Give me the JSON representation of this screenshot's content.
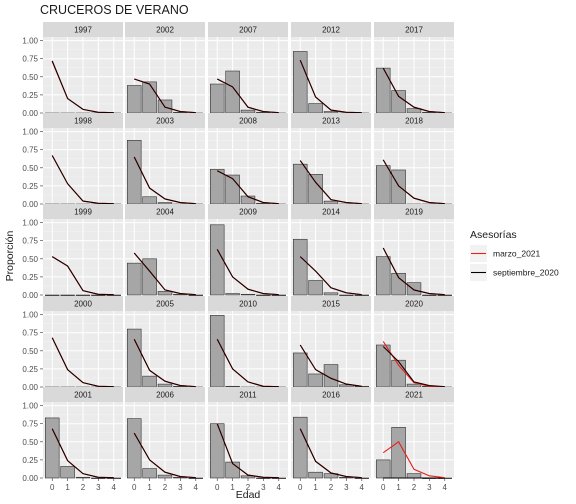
{
  "chart_data": {
    "type": "bar",
    "title": "CRUCEROS DE VERANO",
    "xlabel": "Edad",
    "ylabel": "Proporción",
    "x_ticks": [
      "0",
      "1",
      "2",
      "3",
      "4"
    ],
    "y_ticks": [
      "0.00",
      "0.25",
      "0.50",
      "0.75",
      "1.00"
    ],
    "ylim": [
      0,
      1.05
    ],
    "grid": true,
    "legend": {
      "title": "Asesorías",
      "position": "right",
      "entries": [
        {
          "name": "marzo_2021",
          "color": "#e8201c"
        },
        {
          "name": "septiembre_2020",
          "color": "#000000"
        }
      ]
    },
    "bar_fill": "#a6a6a6",
    "panels": [
      {
        "year": "1997",
        "bars": [
          0,
          0,
          0,
          0,
          0
        ],
        "septiembre_2020": [
          0.72,
          0.2,
          0.05,
          0.01,
          0.005
        ],
        "marzo_2021": [
          0.71,
          0.2,
          0.05,
          0.01,
          0.005
        ]
      },
      {
        "year": "2002",
        "bars": [
          0.38,
          0.43,
          0.18,
          0.01,
          0.0
        ],
        "septiembre_2020": [
          0.47,
          0.4,
          0.08,
          0.02,
          0.005
        ],
        "marzo_2021": [
          0.47,
          0.4,
          0.08,
          0.02,
          0.005
        ]
      },
      {
        "year": "2007",
        "bars": [
          0.4,
          0.58,
          0.04,
          0.01,
          0.0
        ],
        "septiembre_2020": [
          0.47,
          0.36,
          0.08,
          0.02,
          0.005
        ],
        "marzo_2021": [
          0.47,
          0.36,
          0.08,
          0.02,
          0.005
        ]
      },
      {
        "year": "2012",
        "bars": [
          0.85,
          0.13,
          0.02,
          0.0,
          0.0
        ],
        "septiembre_2020": [
          0.73,
          0.22,
          0.04,
          0.01,
          0.005
        ],
        "marzo_2021": [
          0.73,
          0.22,
          0.04,
          0.01,
          0.005
        ]
      },
      {
        "year": "2017",
        "bars": [
          0.62,
          0.31,
          0.06,
          0.01,
          0.0
        ],
        "septiembre_2020": [
          0.62,
          0.23,
          0.08,
          0.02,
          0.005
        ],
        "marzo_2021": [
          0.62,
          0.23,
          0.08,
          0.02,
          0.005
        ]
      },
      {
        "year": "1998",
        "bars": [
          0,
          0,
          0,
          0,
          0
        ],
        "septiembre_2020": [
          0.67,
          0.28,
          0.04,
          0.01,
          0.005
        ],
        "marzo_2021": [
          0.67,
          0.28,
          0.04,
          0.01,
          0.005
        ]
      },
      {
        "year": "2003",
        "bars": [
          0.88,
          0.1,
          0.02,
          0.0,
          0.0
        ],
        "septiembre_2020": [
          0.65,
          0.22,
          0.07,
          0.02,
          0.005
        ],
        "marzo_2021": [
          0.65,
          0.22,
          0.07,
          0.02,
          0.005
        ]
      },
      {
        "year": "2008",
        "bars": [
          0.48,
          0.4,
          0.11,
          0.01,
          0.0
        ],
        "septiembre_2020": [
          0.46,
          0.35,
          0.1,
          0.02,
          0.005
        ],
        "marzo_2021": [
          0.46,
          0.35,
          0.1,
          0.02,
          0.005
        ]
      },
      {
        "year": "2013",
        "bars": [
          0.55,
          0.41,
          0.04,
          0.0,
          0.0
        ],
        "septiembre_2020": [
          0.6,
          0.3,
          0.06,
          0.02,
          0.005
        ],
        "marzo_2021": [
          0.6,
          0.3,
          0.06,
          0.02,
          0.005
        ]
      },
      {
        "year": "2018",
        "bars": [
          0.53,
          0.47,
          0.0,
          0.0,
          0.0
        ],
        "septiembre_2020": [
          0.61,
          0.25,
          0.08,
          0.02,
          0.005
        ],
        "marzo_2021": [
          0.61,
          0.25,
          0.08,
          0.02,
          0.005
        ]
      },
      {
        "year": "1999",
        "bars": [
          0,
          0,
          0,
          0,
          0
        ],
        "septiembre_2020": [
          0.53,
          0.4,
          0.06,
          0.01,
          0.005
        ],
        "marzo_2021": [
          0.53,
          0.4,
          0.06,
          0.01,
          0.005
        ]
      },
      {
        "year": "2004",
        "bars": [
          0.44,
          0.5,
          0.05,
          0.01,
          0.0
        ],
        "septiembre_2020": [
          0.58,
          0.33,
          0.07,
          0.02,
          0.005
        ],
        "marzo_2021": [
          0.58,
          0.33,
          0.07,
          0.02,
          0.005
        ]
      },
      {
        "year": "2009",
        "bars": [
          0.97,
          0.02,
          0.01,
          0.0,
          0.0
        ],
        "septiembre_2020": [
          0.63,
          0.25,
          0.08,
          0.02,
          0.005
        ],
        "marzo_2021": [
          0.63,
          0.25,
          0.08,
          0.02,
          0.005
        ]
      },
      {
        "year": "2014",
        "bars": [
          0.77,
          0.2,
          0.03,
          0.0,
          0.0
        ],
        "septiembre_2020": [
          0.53,
          0.33,
          0.1,
          0.03,
          0.005
        ],
        "marzo_2021": [
          0.53,
          0.33,
          0.1,
          0.03,
          0.005
        ]
      },
      {
        "year": "2019",
        "bars": [
          0.53,
          0.3,
          0.17,
          0.0,
          0.0
        ],
        "septiembre_2020": [
          0.65,
          0.24,
          0.07,
          0.02,
          0.005
        ],
        "marzo_2021": [
          0.65,
          0.24,
          0.07,
          0.02,
          0.005
        ]
      },
      {
        "year": "2000",
        "bars": [
          0,
          0,
          0,
          0,
          0
        ],
        "septiembre_2020": [
          0.68,
          0.24,
          0.06,
          0.01,
          0.005
        ],
        "marzo_2021": [
          0.68,
          0.24,
          0.06,
          0.01,
          0.005
        ]
      },
      {
        "year": "2005",
        "bars": [
          0.8,
          0.15,
          0.04,
          0.01,
          0.0
        ],
        "septiembre_2020": [
          0.66,
          0.23,
          0.08,
          0.02,
          0.005
        ],
        "marzo_2021": [
          0.66,
          0.23,
          0.08,
          0.02,
          0.005
        ]
      },
      {
        "year": "2010",
        "bars": [
          0.99,
          0.01,
          0.0,
          0.0,
          0.0
        ],
        "septiembre_2020": [
          0.66,
          0.25,
          0.07,
          0.01,
          0.005
        ],
        "marzo_2021": [
          0.66,
          0.25,
          0.07,
          0.01,
          0.005
        ]
      },
      {
        "year": "2015",
        "bars": [
          0.47,
          0.18,
          0.31,
          0.03,
          0.01
        ],
        "septiembre_2020": [
          0.58,
          0.24,
          0.12,
          0.04,
          0.01
        ],
        "marzo_2021": [
          0.58,
          0.24,
          0.12,
          0.04,
          0.01
        ]
      },
      {
        "year": "2020",
        "bars": [
          0.58,
          0.37,
          0.04,
          0.01,
          0.0
        ],
        "septiembre_2020": [
          0.56,
          0.35,
          0.07,
          0.02,
          0.005
        ],
        "marzo_2021": [
          0.63,
          0.3,
          0.06,
          0.01,
          0.005
        ]
      },
      {
        "year": "2001",
        "bars": [
          0.83,
          0.16,
          0.01,
          0.0,
          0.0
        ],
        "septiembre_2020": [
          0.68,
          0.24,
          0.06,
          0.01,
          0.005
        ],
        "marzo_2021": [
          0.68,
          0.24,
          0.06,
          0.01,
          0.005
        ]
      },
      {
        "year": "2006",
        "bars": [
          0.82,
          0.13,
          0.04,
          0.01,
          0.0
        ],
        "septiembre_2020": [
          0.62,
          0.25,
          0.08,
          0.02,
          0.005
        ],
        "marzo_2021": [
          0.62,
          0.25,
          0.08,
          0.02,
          0.005
        ]
      },
      {
        "year": "2011",
        "bars": [
          0.75,
          0.22,
          0.03,
          0.0,
          0.0
        ],
        "septiembre_2020": [
          0.75,
          0.2,
          0.04,
          0.01,
          0.005
        ],
        "marzo_2021": [
          0.75,
          0.2,
          0.04,
          0.01,
          0.005
        ]
      },
      {
        "year": "2016",
        "bars": [
          0.84,
          0.08,
          0.06,
          0.01,
          0.0
        ],
        "septiembre_2020": [
          0.68,
          0.23,
          0.07,
          0.02,
          0.005
        ],
        "marzo_2021": [
          0.68,
          0.23,
          0.07,
          0.02,
          0.005
        ]
      },
      {
        "year": "2021",
        "bars": [
          0.25,
          0.7,
          0.06,
          0.0,
          0.0
        ],
        "septiembre_2020": [
          0.0,
          0.0,
          0.0,
          0.0,
          0.0
        ],
        "marzo_2021": [
          0.35,
          0.5,
          0.12,
          0.03,
          0.005
        ]
      }
    ]
  }
}
